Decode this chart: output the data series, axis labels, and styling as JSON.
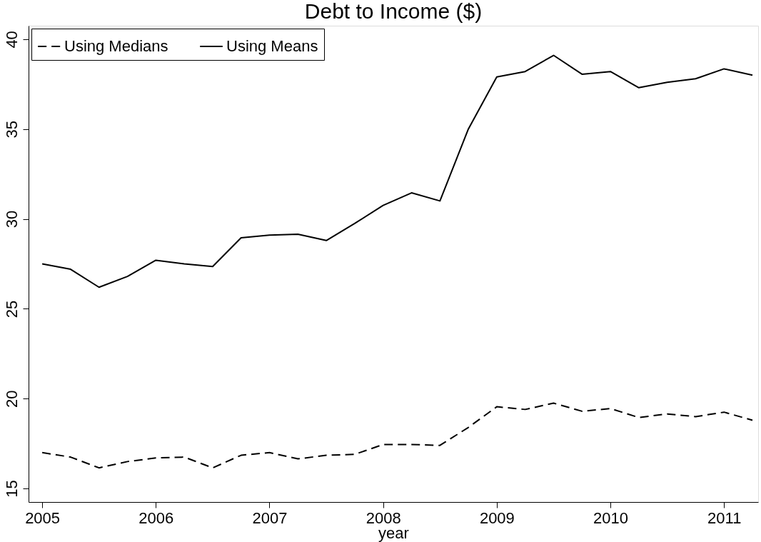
{
  "chart_data": {
    "type": "line",
    "title": "Debt to Income ($)",
    "xlabel": "year",
    "x": [
      2005,
      2005.25,
      2005.5,
      2005.75,
      2006,
      2006.25,
      2006.5,
      2006.75,
      2007,
      2007.25,
      2007.5,
      2007.75,
      2008,
      2008.25,
      2008.5,
      2008.75,
      2009,
      2009.25,
      2009.5,
      2009.75,
      2010,
      2010.25,
      2010.5,
      2010.75,
      2011,
      2011.25
    ],
    "series": [
      {
        "name": "Using Medians",
        "color": "#000000",
        "line_style": "dashed",
        "values": [
          17.0,
          16.75,
          16.15,
          16.5,
          16.7,
          16.75,
          16.15,
          16.85,
          17.0,
          16.65,
          16.85,
          16.9,
          17.45,
          17.45,
          17.4,
          18.4,
          19.55,
          19.4,
          19.75,
          19.3,
          19.45,
          18.95,
          19.15,
          19.0,
          19.25,
          18.8
        ]
      },
      {
        "name": "Using Means",
        "color": "#000000",
        "line_style": "solid",
        "values": [
          27.5,
          27.2,
          26.2,
          26.8,
          27.7,
          27.5,
          27.35,
          28.95,
          29.1,
          29.15,
          28.8,
          29.75,
          30.75,
          31.45,
          31.0,
          35.0,
          37.9,
          38.2,
          39.1,
          38.05,
          38.2,
          37.3,
          37.6,
          37.8,
          38.35,
          38.0
        ]
      }
    ],
    "xlim": [
      2004.88,
      2011.3
    ],
    "xticks": [
      2005,
      2006,
      2007,
      2008,
      2009,
      2010,
      2011
    ],
    "ylim": [
      14.25,
      40.75
    ],
    "yticks": [
      15,
      20,
      25,
      30,
      35,
      40
    ],
    "grid": false,
    "legend": "top left",
    "marker": "none"
  }
}
